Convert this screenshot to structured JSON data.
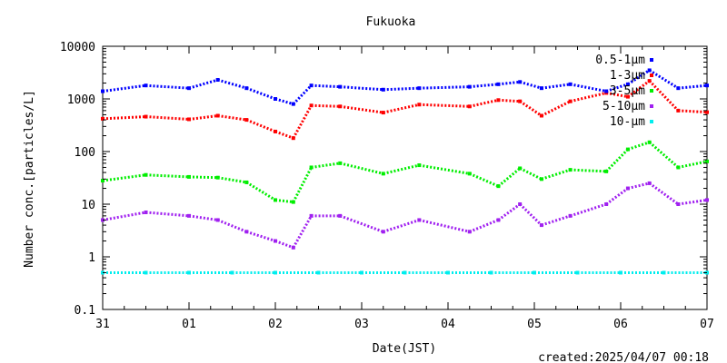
{
  "chart_data": {
    "type": "scatter",
    "title": "Fukuoka",
    "xlabel": "Date(JST)",
    "ylabel": "Number conc.[particles/L]",
    "y_scale": "log",
    "ylim": [
      0.1,
      10000
    ],
    "y_ticks": [
      "0.1",
      "1",
      "10",
      "100",
      "1000",
      "10000"
    ],
    "xlim": [
      "2025-03-31",
      "2025-04-07"
    ],
    "x_ticks": [
      "31",
      "01",
      "02",
      "03",
      "04",
      "05",
      "06",
      "07"
    ],
    "grid": false,
    "legend_position": "top-right",
    "series": [
      {
        "name": "0.5-1μm",
        "color": "#0000ff",
        "points": [
          [
            "2025-03-31T00:00",
            1400
          ],
          [
            "2025-03-31T12:00",
            1800
          ],
          [
            "2025-04-01T00:00",
            1600
          ],
          [
            "2025-04-01T08:00",
            2300
          ],
          [
            "2025-04-01T16:00",
            1600
          ],
          [
            "2025-04-02T00:00",
            1000
          ],
          [
            "2025-04-02T05:00",
            800
          ],
          [
            "2025-04-02T10:00",
            1800
          ],
          [
            "2025-04-02T18:00",
            1700
          ],
          [
            "2025-04-03T06:00",
            1500
          ],
          [
            "2025-04-03T16:00",
            1600
          ],
          [
            "2025-04-04T06:00",
            1700
          ],
          [
            "2025-04-04T14:00",
            1900
          ],
          [
            "2025-04-04T20:00",
            2100
          ],
          [
            "2025-04-05T02:00",
            1600
          ],
          [
            "2025-04-05T10:00",
            1900
          ],
          [
            "2025-04-05T20:00",
            1400
          ],
          [
            "2025-04-06T02:00",
            1900
          ],
          [
            "2025-04-06T08:00",
            3500
          ],
          [
            "2025-04-06T16:00",
            1600
          ],
          [
            "2025-04-07T00:00",
            1800
          ]
        ]
      },
      {
        "name": "1-3μm",
        "color": "#ff0000",
        "points": [
          [
            "2025-03-31T00:00",
            420
          ],
          [
            "2025-03-31T12:00",
            460
          ],
          [
            "2025-04-01T00:00",
            410
          ],
          [
            "2025-04-01T08:00",
            480
          ],
          [
            "2025-04-01T16:00",
            400
          ],
          [
            "2025-04-02T00:00",
            240
          ],
          [
            "2025-04-02T05:00",
            180
          ],
          [
            "2025-04-02T10:00",
            750
          ],
          [
            "2025-04-02T18:00",
            720
          ],
          [
            "2025-04-03T06:00",
            550
          ],
          [
            "2025-04-03T16:00",
            780
          ],
          [
            "2025-04-04T06:00",
            720
          ],
          [
            "2025-04-04T14:00",
            950
          ],
          [
            "2025-04-04T20:00",
            900
          ],
          [
            "2025-04-05T02:00",
            480
          ],
          [
            "2025-04-05T10:00",
            900
          ],
          [
            "2025-04-05T20:00",
            1300
          ],
          [
            "2025-04-06T02:00",
            1100
          ],
          [
            "2025-04-06T08:00",
            2200
          ],
          [
            "2025-04-06T16:00",
            600
          ],
          [
            "2025-04-07T00:00",
            560
          ]
        ]
      },
      {
        "name": "3-5μm",
        "color": "#00ee00",
        "points": [
          [
            "2025-03-31T00:00",
            28
          ],
          [
            "2025-03-31T12:00",
            36
          ],
          [
            "2025-04-01T00:00",
            33
          ],
          [
            "2025-04-01T08:00",
            32
          ],
          [
            "2025-04-01T16:00",
            26
          ],
          [
            "2025-04-02T00:00",
            12
          ],
          [
            "2025-04-02T05:00",
            11
          ],
          [
            "2025-04-02T10:00",
            50
          ],
          [
            "2025-04-02T18:00",
            60
          ],
          [
            "2025-04-03T06:00",
            38
          ],
          [
            "2025-04-03T16:00",
            55
          ],
          [
            "2025-04-04T06:00",
            38
          ],
          [
            "2025-04-04T14:00",
            22
          ],
          [
            "2025-04-04T20:00",
            48
          ],
          [
            "2025-04-05T02:00",
            30
          ],
          [
            "2025-04-05T10:00",
            45
          ],
          [
            "2025-04-05T20:00",
            42
          ],
          [
            "2025-04-06T02:00",
            110
          ],
          [
            "2025-04-06T08:00",
            150
          ],
          [
            "2025-04-06T16:00",
            50
          ],
          [
            "2025-04-07T00:00",
            65
          ]
        ]
      },
      {
        "name": "5-10μm",
        "color": "#a020f0",
        "points": [
          [
            "2025-03-31T00:00",
            5
          ],
          [
            "2025-03-31T12:00",
            7
          ],
          [
            "2025-04-01T00:00",
            6
          ],
          [
            "2025-04-01T08:00",
            5
          ],
          [
            "2025-04-01T16:00",
            3
          ],
          [
            "2025-04-02T00:00",
            2
          ],
          [
            "2025-04-02T05:00",
            1.5
          ],
          [
            "2025-04-02T10:00",
            6
          ],
          [
            "2025-04-02T18:00",
            6
          ],
          [
            "2025-04-03T06:00",
            3
          ],
          [
            "2025-04-03T16:00",
            5
          ],
          [
            "2025-04-04T06:00",
            3
          ],
          [
            "2025-04-04T14:00",
            5
          ],
          [
            "2025-04-04T20:00",
            10
          ],
          [
            "2025-04-05T02:00",
            4
          ],
          [
            "2025-04-05T10:00",
            6
          ],
          [
            "2025-04-05T20:00",
            10
          ],
          [
            "2025-04-06T02:00",
            20
          ],
          [
            "2025-04-06T08:00",
            25
          ],
          [
            "2025-04-06T16:00",
            10
          ],
          [
            "2025-04-07T00:00",
            12
          ]
        ]
      },
      {
        "name": "10-μm",
        "color": "#00eeee",
        "points": [
          [
            "2025-03-31T00:00",
            0.5
          ],
          [
            "2025-03-31T12:00",
            0.5
          ],
          [
            "2025-04-01T00:00",
            0.5
          ],
          [
            "2025-04-01T12:00",
            0.5
          ],
          [
            "2025-04-02T00:00",
            0.5
          ],
          [
            "2025-04-02T12:00",
            0.5
          ],
          [
            "2025-04-03T00:00",
            0.5
          ],
          [
            "2025-04-03T12:00",
            0.5
          ],
          [
            "2025-04-04T00:00",
            0.5
          ],
          [
            "2025-04-04T12:00",
            0.5
          ],
          [
            "2025-04-05T00:00",
            0.5
          ],
          [
            "2025-04-05T12:00",
            0.5
          ],
          [
            "2025-04-06T00:00",
            0.5
          ],
          [
            "2025-04-06T12:00",
            0.5
          ],
          [
            "2025-04-07T00:00",
            0.5
          ]
        ]
      }
    ],
    "footer": "created:2025/04/07 00:18"
  }
}
